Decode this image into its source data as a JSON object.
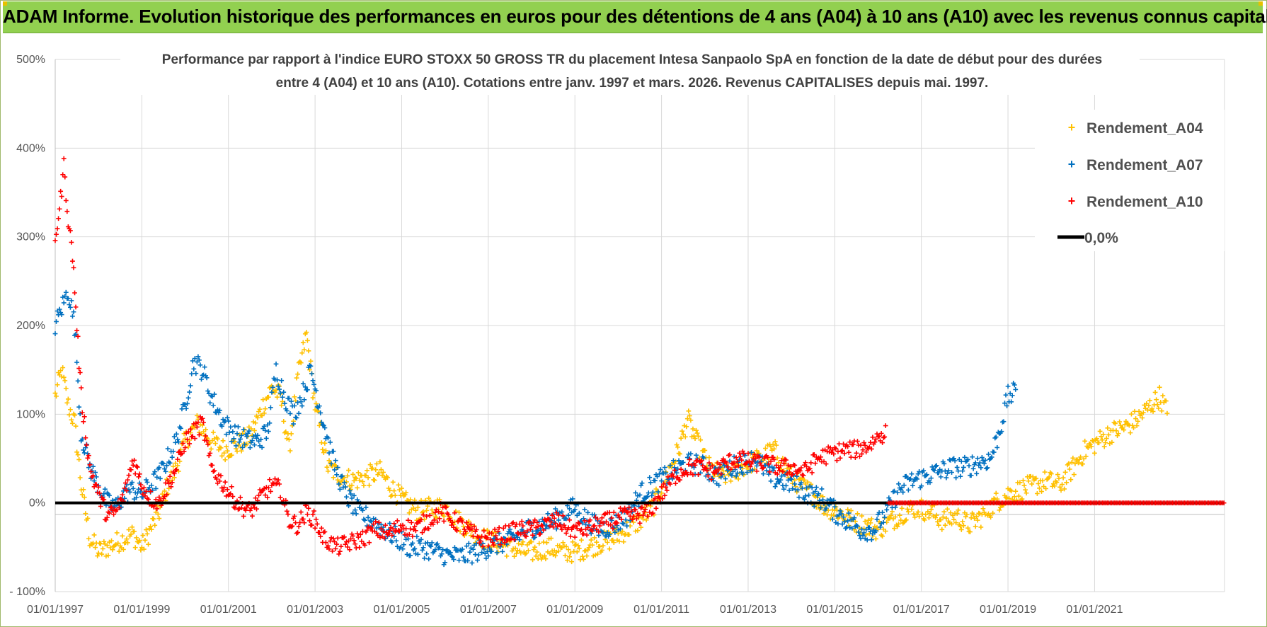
{
  "header": {
    "title": "ADAM Informe. Evolution historique des performances en euros pour des détentions de 4 ans (A04) à 10 ans (A10) avec les revenus connus capitalisés"
  },
  "colors": {
    "banner": "#92d050",
    "a04": "#ffc000",
    "a07": "#0070c0",
    "a10": "#ff0000",
    "zero": "#000000",
    "grid": "#d9d9d9"
  },
  "chart_data": {
    "type": "scatter",
    "title_lines": [
      "Performance par rapport à l'indice EURO STOXX 50 GROSS TR  du placement Intesa Sanpaolo SpA en fonction de la date de début pour des durées",
      "entre 4 (A04) et 10 ans (A10).  Cotations entre janv. 1997 et mars. 2026.  Revenus CAPITALISES  depuis mai. 1997."
    ],
    "xlabel": "",
    "ylabel": "",
    "x_range": [
      1997.0,
      2024.0
    ],
    "ylim": [
      -100,
      500
    ],
    "y_ticks": [
      {
        "value": 500,
        "label": "500%"
      },
      {
        "value": 400,
        "label": "400%"
      },
      {
        "value": 300,
        "label": "300%"
      },
      {
        "value": 200,
        "label": "200%"
      },
      {
        "value": 100,
        "label": "100%"
      },
      {
        "value": 0,
        "label": "0%"
      },
      {
        "value": -100,
        "label": "- 100%"
      }
    ],
    "x_ticks": [
      {
        "value": 1997,
        "label": "01/01/1997"
      },
      {
        "value": 1999,
        "label": "01/01/1999"
      },
      {
        "value": 2001,
        "label": "01/01/2001"
      },
      {
        "value": 2003,
        "label": "01/01/2003"
      },
      {
        "value": 2005,
        "label": "01/01/2005"
      },
      {
        "value": 2007,
        "label": "01/01/2007"
      },
      {
        "value": 2009,
        "label": "01/01/2009"
      },
      {
        "value": 2011,
        "label": "01/01/2011"
      },
      {
        "value": 2013,
        "label": "01/01/2013"
      },
      {
        "value": 2015,
        "label": "01/01/2015"
      },
      {
        "value": 2017,
        "label": "01/01/2017"
      },
      {
        "value": 2019,
        "label": "01/01/2019"
      },
      {
        "value": 2021,
        "label": "01/01/2021"
      }
    ],
    "legend_position": "top-right",
    "series": [
      {
        "name": "Rendement_A04",
        "color": "#ffc000",
        "x": [
          1997.0,
          1997.15,
          1997.3,
          1997.45,
          1997.6,
          1997.8,
          1998.0,
          1998.2,
          1998.4,
          1998.6,
          1998.8,
          1999.0,
          1999.2,
          1999.4,
          1999.6,
          1999.8,
          2000.0,
          2000.3,
          2000.6,
          2000.9,
          2001.2,
          2001.5,
          2001.8,
          2002.0,
          2002.2,
          2002.4,
          2002.6,
          2002.8,
          2003.0,
          2003.3,
          2003.6,
          2003.9,
          2004.2,
          2004.5,
          2004.8,
          2005.1,
          2005.4,
          2005.7,
          2006.0,
          2006.3,
          2006.6,
          2006.9,
          2007.2,
          2007.5,
          2007.8,
          2008.1,
          2008.4,
          2008.7,
          2009.0,
          2009.3,
          2009.6,
          2009.9,
          2010.2,
          2010.5,
          2010.8,
          2011.1,
          2011.4,
          2011.6,
          2011.8,
          2012.1,
          2012.4,
          2012.7,
          2013.0,
          2013.3,
          2013.6,
          2013.9,
          2014.2,
          2014.5,
          2014.8,
          2015.1,
          2015.4,
          2015.7,
          2016.0,
          2016.3,
          2016.6,
          2016.9,
          2017.2,
          2017.5,
          2017.8,
          2018.1,
          2018.4,
          2018.7,
          2019.0,
          2019.3,
          2019.6,
          2019.9,
          2020.2,
          2020.5,
          2020.8,
          2021.1,
          2021.4,
          2021.7,
          2022.0,
          2022.3,
          2022.5,
          2022.7
        ],
        "y": [
          120,
          150,
          110,
          90,
          20,
          -40,
          -55,
          -50,
          -45,
          -40,
          -35,
          -50,
          -30,
          -10,
          20,
          40,
          70,
          90,
          70,
          60,
          65,
          75,
          110,
          130,
          120,
          60,
          140,
          190,
          110,
          40,
          30,
          25,
          30,
          35,
          15,
          0,
          -10,
          -5,
          -5,
          -20,
          -30,
          -40,
          -45,
          -50,
          -55,
          -55,
          -50,
          -55,
          -55,
          -50,
          -45,
          -40,
          -30,
          -20,
          -5,
          30,
          60,
          95,
          70,
          40,
          30,
          35,
          45,
          50,
          60,
          35,
          20,
          10,
          -5,
          -10,
          -20,
          -25,
          -30,
          -20,
          -10,
          -5,
          -10,
          -20,
          -15,
          -25,
          -15,
          0,
          10,
          15,
          20,
          25,
          20,
          40,
          60,
          70,
          80,
          85,
          95,
          110,
          120,
          100
        ],
        "spread": 12
      },
      {
        "name": "Rendement_A07",
        "color": "#0070c0",
        "x": [
          1997.0,
          1997.15,
          1997.3,
          1997.45,
          1997.6,
          1997.8,
          1998.0,
          1998.2,
          1998.4,
          1998.6,
          1998.8,
          1999.0,
          1999.2,
          1999.4,
          1999.6,
          1999.8,
          2000.0,
          2000.2,
          2000.4,
          2000.6,
          2000.9,
          2001.2,
          2001.5,
          2001.7,
          2001.9,
          2002.1,
          2002.3,
          2002.5,
          2002.7,
          2002.9,
          2003.1,
          2003.4,
          2003.7,
          2004.0,
          2004.3,
          2004.6,
          2004.9,
          2005.2,
          2005.5,
          2005.8,
          2006.1,
          2006.4,
          2006.7,
          2007.0,
          2007.3,
          2007.6,
          2007.9,
          2008.2,
          2008.5,
          2008.8,
          2009.0,
          2009.3,
          2009.6,
          2009.9,
          2010.2,
          2010.5,
          2010.8,
          2011.1,
          2011.4,
          2011.7,
          2012.0,
          2012.3,
          2012.6,
          2012.9,
          2013.2,
          2013.5,
          2013.8,
          2014.1,
          2014.4,
          2014.7,
          2015.0,
          2015.3,
          2015.6,
          2015.9,
          2016.2,
          2016.5,
          2016.8,
          2017.1,
          2017.4,
          2017.7,
          2018.0,
          2018.3,
          2018.6,
          2018.8,
          2019.0,
          2019.2
        ],
        "y": [
          200,
          220,
          240,
          200,
          80,
          40,
          20,
          0,
          -5,
          10,
          15,
          10,
          20,
          30,
          50,
          70,
          110,
          160,
          150,
          120,
          90,
          75,
          70,
          70,
          80,
          150,
          120,
          100,
          120,
          150,
          110,
          50,
          10,
          -10,
          -20,
          -30,
          -40,
          -50,
          -50,
          -55,
          -60,
          -60,
          -55,
          -50,
          -45,
          -40,
          -30,
          -25,
          -20,
          -10,
          -5,
          -20,
          -30,
          -25,
          -15,
          10,
          20,
          30,
          40,
          45,
          40,
          30,
          40,
          45,
          50,
          30,
          25,
          20,
          10,
          5,
          -10,
          -20,
          -30,
          -30,
          -10,
          15,
          25,
          30,
          35,
          40,
          40,
          45,
          50,
          80,
          120,
          125
        ],
        "spread": 12
      },
      {
        "name": "Rendement_A10",
        "color": "#ff0000",
        "x": [
          1997.0,
          1997.1,
          1997.2,
          1997.3,
          1997.4,
          1997.5,
          1997.6,
          1997.8,
          1998.0,
          1998.2,
          1998.4,
          1998.6,
          1998.8,
          1999.0,
          1999.2,
          1999.4,
          1999.6,
          1999.8,
          2000.0,
          2000.2,
          2000.4,
          2000.6,
          2000.9,
          2001.2,
          2001.5,
          2001.8,
          2002.0,
          2002.2,
          2002.4,
          2002.6,
          2002.8,
          2003.0,
          2003.2,
          2003.5,
          2003.8,
          2004.1,
          2004.4,
          2004.7,
          2005.0,
          2005.3,
          2005.6,
          2005.9,
          2006.2,
          2006.5,
          2006.8,
          2007.1,
          2007.4,
          2007.7,
          2008.0,
          2008.3,
          2008.6,
          2008.9,
          2009.2,
          2009.5,
          2009.8,
          2010.1,
          2010.4,
          2010.7,
          2011.0,
          2011.3,
          2011.6,
          2011.9,
          2012.2,
          2012.5,
          2012.8,
          2013.1,
          2013.4,
          2013.7,
          2014.0,
          2014.3,
          2014.6,
          2014.9,
          2015.2,
          2015.5,
          2015.8,
          2016.0,
          2016.2
        ],
        "y": [
          300,
          330,
          380,
          320,
          280,
          200,
          120,
          40,
          10,
          -15,
          -10,
          10,
          50,
          20,
          5,
          0,
          20,
          40,
          70,
          80,
          90,
          40,
          20,
          0,
          -10,
          10,
          20,
          15,
          -20,
          -25,
          -10,
          -20,
          -40,
          -50,
          -45,
          -40,
          -30,
          -35,
          -25,
          -30,
          -20,
          -10,
          -20,
          -30,
          -40,
          -40,
          -35,
          -30,
          -30,
          -25,
          -20,
          -30,
          -30,
          -25,
          -20,
          -15,
          -15,
          -10,
          10,
          30,
          40,
          40,
          35,
          45,
          50,
          45,
          45,
          40,
          40,
          35,
          50,
          55,
          60,
          60,
          65,
          75,
          80
        ],
        "spread": 10
      }
    ],
    "flat_segment": {
      "series": "Rendement_A10",
      "x_from": 2016.25,
      "x_to": 2024.0,
      "y": 0
    },
    "zero_line": {
      "label": "0,0%",
      "y": 0
    }
  }
}
